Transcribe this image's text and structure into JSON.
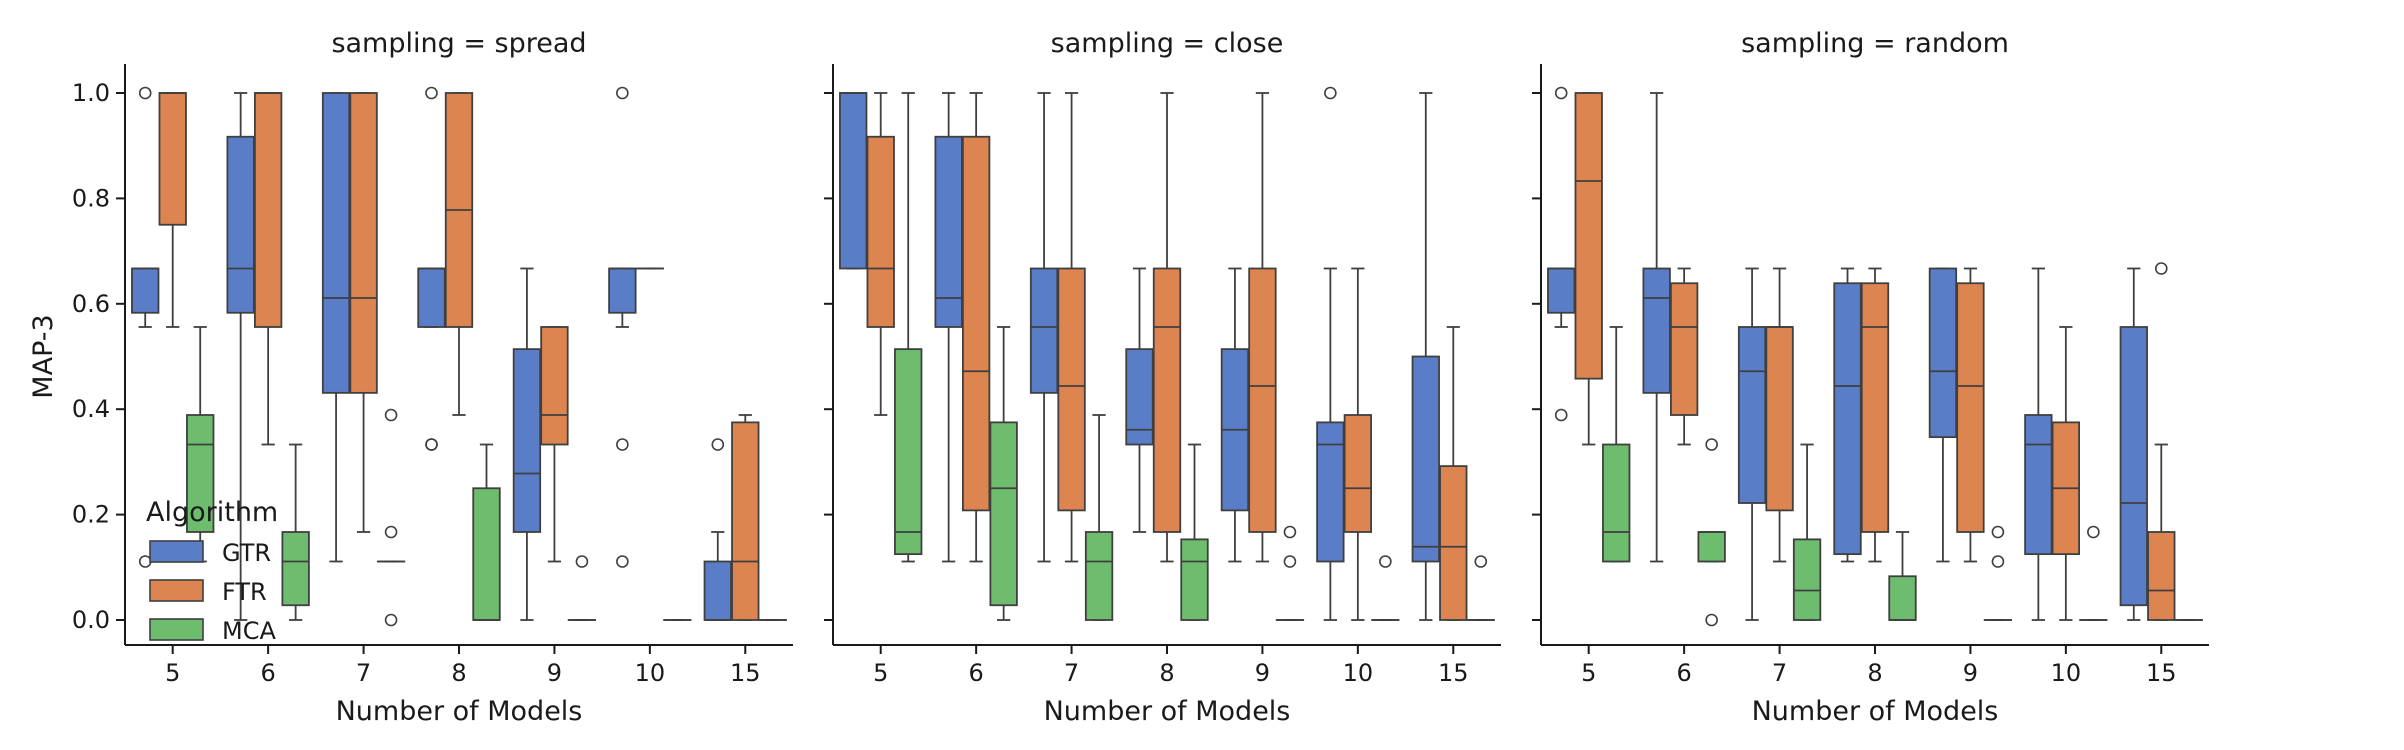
{
  "chart_data": {
    "type": "boxplot",
    "ylabel": "MAP-3",
    "xlabel": "Number of Models",
    "ylim": [
      -0.05,
      1.05
    ],
    "yticks": [
      0.0,
      0.2,
      0.4,
      0.6,
      0.8,
      1.0
    ],
    "categories": [
      "5",
      "6",
      "7",
      "8",
      "9",
      "10",
      "15"
    ],
    "legend": {
      "title": "Algorithm",
      "placement": "lower-left of first panel",
      "entries": [
        {
          "name": "GTR",
          "color": "#5a7dc8"
        },
        {
          "name": "FTR",
          "color": "#dd8550"
        },
        {
          "name": "MCA",
          "color": "#6ebd6e"
        }
      ]
    },
    "panels": [
      {
        "title": "sampling = spread",
        "groups": [
          {
            "category": "5",
            "boxes": [
              {
                "algo": "GTR",
                "q1": 0.583,
                "med": 0.667,
                "q3": 0.667,
                "lo": 0.556,
                "hi": 0.667,
                "out": [
                  1.0,
                  0.111
                ]
              },
              {
                "algo": "FTR",
                "q1": 0.75,
                "med": 1.0,
                "q3": 1.0,
                "lo": 0.556,
                "hi": 1.0,
                "out": []
              },
              {
                "algo": "MCA",
                "q1": 0.167,
                "med": 0.333,
                "q3": 0.389,
                "lo": 0.111,
                "hi": 0.556,
                "out": []
              }
            ]
          },
          {
            "category": "6",
            "boxes": [
              {
                "algo": "GTR",
                "q1": 0.583,
                "med": 0.667,
                "q3": 0.917,
                "lo": 0.0,
                "hi": 1.0,
                "out": []
              },
              {
                "algo": "FTR",
                "q1": 0.556,
                "med": 1.0,
                "q3": 1.0,
                "lo": 0.333,
                "hi": 1.0,
                "out": []
              },
              {
                "algo": "MCA",
                "q1": 0.028,
                "med": 0.111,
                "q3": 0.167,
                "lo": 0.0,
                "hi": 0.333,
                "out": []
              }
            ]
          },
          {
            "category": "7",
            "boxes": [
              {
                "algo": "GTR",
                "q1": 0.431,
                "med": 0.611,
                "q3": 1.0,
                "lo": 0.111,
                "hi": 1.0,
                "out": []
              },
              {
                "algo": "FTR",
                "q1": 0.431,
                "med": 0.611,
                "q3": 1.0,
                "lo": 0.167,
                "hi": 1.0,
                "out": []
              },
              {
                "algo": "MCA",
                "q1": 0.111,
                "med": 0.111,
                "q3": 0.111,
                "lo": 0.111,
                "hi": 0.111,
                "out": [
                  0.389,
                  0.167,
                  0.0
                ]
              }
            ]
          },
          {
            "category": "8",
            "boxes": [
              {
                "algo": "GTR",
                "q1": 0.556,
                "med": 0.667,
                "q3": 0.667,
                "lo": 0.556,
                "hi": 0.667,
                "out": [
                  1.0,
                  0.333,
                  0.333
                ]
              },
              {
                "algo": "FTR",
                "q1": 0.556,
                "med": 0.778,
                "q3": 1.0,
                "lo": 0.389,
                "hi": 1.0,
                "out": []
              },
              {
                "algo": "MCA",
                "q1": 0.0,
                "med": 0.0,
                "q3": 0.25,
                "lo": 0.0,
                "hi": 0.333,
                "out": []
              }
            ]
          },
          {
            "category": "9",
            "boxes": [
              {
                "algo": "GTR",
                "q1": 0.167,
                "med": 0.278,
                "q3": 0.514,
                "lo": 0.0,
                "hi": 0.667,
                "out": []
              },
              {
                "algo": "FTR",
                "q1": 0.333,
                "med": 0.389,
                "q3": 0.556,
                "lo": 0.111,
                "hi": 0.556,
                "out": []
              },
              {
                "algo": "MCA",
                "q1": 0.0,
                "med": 0.0,
                "q3": 0.0,
                "lo": 0.0,
                "hi": 0.0,
                "out": [
                  0.111
                ]
              }
            ]
          },
          {
            "category": "10",
            "boxes": [
              {
                "algo": "GTR",
                "q1": 0.583,
                "med": 0.667,
                "q3": 0.667,
                "lo": 0.556,
                "hi": 0.667,
                "out": [
                  1.0,
                  0.333,
                  0.111
                ]
              },
              {
                "algo": "FTR",
                "q1": 0.667,
                "med": 0.667,
                "q3": 0.667,
                "lo": 0.667,
                "hi": 0.667,
                "out": []
              },
              {
                "algo": "MCA",
                "q1": 0.0,
                "med": 0.0,
                "q3": 0.0,
                "lo": 0.0,
                "hi": 0.0,
                "out": []
              }
            ]
          },
          {
            "category": "15",
            "boxes": [
              {
                "algo": "GTR",
                "q1": 0.0,
                "med": 0.0,
                "q3": 0.111,
                "lo": 0.0,
                "hi": 0.167,
                "out": [
                  0.333
                ]
              },
              {
                "algo": "FTR",
                "q1": 0.0,
                "med": 0.111,
                "q3": 0.375,
                "lo": 0.0,
                "hi": 0.389,
                "out": []
              },
              {
                "algo": "MCA",
                "q1": 0.0,
                "med": 0.0,
                "q3": 0.0,
                "lo": 0.0,
                "hi": 0.0,
                "out": []
              }
            ]
          }
        ]
      },
      {
        "title": "sampling = close",
        "groups": [
          {
            "category": "5",
            "boxes": [
              {
                "algo": "GTR",
                "q1": 0.667,
                "med": 1.0,
                "q3": 1.0,
                "lo": 0.667,
                "hi": 1.0,
                "out": []
              },
              {
                "algo": "FTR",
                "q1": 0.556,
                "med": 0.667,
                "q3": 0.917,
                "lo": 0.389,
                "hi": 1.0,
                "out": []
              },
              {
                "algo": "MCA",
                "q1": 0.125,
                "med": 0.167,
                "q3": 0.514,
                "lo": 0.111,
                "hi": 1.0,
                "out": []
              }
            ]
          },
          {
            "category": "6",
            "boxes": [
              {
                "algo": "GTR",
                "q1": 0.556,
                "med": 0.611,
                "q3": 0.917,
                "lo": 0.111,
                "hi": 1.0,
                "out": []
              },
              {
                "algo": "FTR",
                "q1": 0.208,
                "med": 0.472,
                "q3": 0.917,
                "lo": 0.111,
                "hi": 1.0,
                "out": []
              },
              {
                "algo": "MCA",
                "q1": 0.028,
                "med": 0.25,
                "q3": 0.375,
                "lo": 0.0,
                "hi": 0.556,
                "out": []
              }
            ]
          },
          {
            "category": "7",
            "boxes": [
              {
                "algo": "GTR",
                "q1": 0.431,
                "med": 0.556,
                "q3": 0.667,
                "lo": 0.111,
                "hi": 1.0,
                "out": []
              },
              {
                "algo": "FTR",
                "q1": 0.208,
                "med": 0.444,
                "q3": 0.667,
                "lo": 0.111,
                "hi": 1.0,
                "out": []
              },
              {
                "algo": "MCA",
                "q1": 0.0,
                "med": 0.111,
                "q3": 0.167,
                "lo": 0.0,
                "hi": 0.389,
                "out": []
              }
            ]
          },
          {
            "category": "8",
            "boxes": [
              {
                "algo": "GTR",
                "q1": 0.333,
                "med": 0.361,
                "q3": 0.514,
                "lo": 0.167,
                "hi": 0.667,
                "out": []
              },
              {
                "algo": "FTR",
                "q1": 0.167,
                "med": 0.556,
                "q3": 0.667,
                "lo": 0.111,
                "hi": 1.0,
                "out": []
              },
              {
                "algo": "MCA",
                "q1": 0.0,
                "med": 0.111,
                "q3": 0.153,
                "lo": 0.0,
                "hi": 0.333,
                "out": []
              }
            ]
          },
          {
            "category": "9",
            "boxes": [
              {
                "algo": "GTR",
                "q1": 0.208,
                "med": 0.361,
                "q3": 0.514,
                "lo": 0.111,
                "hi": 0.667,
                "out": []
              },
              {
                "algo": "FTR",
                "q1": 0.167,
                "med": 0.444,
                "q3": 0.667,
                "lo": 0.111,
                "hi": 1.0,
                "out": []
              },
              {
                "algo": "MCA",
                "q1": 0.0,
                "med": 0.0,
                "q3": 0.0,
                "lo": 0.0,
                "hi": 0.0,
                "out": [
                  0.167,
                  0.111
                ]
              }
            ]
          },
          {
            "category": "10",
            "boxes": [
              {
                "algo": "GTR",
                "q1": 0.111,
                "med": 0.333,
                "q3": 0.375,
                "lo": 0.0,
                "hi": 0.667,
                "out": [
                  1.0
                ]
              },
              {
                "algo": "FTR",
                "q1": 0.167,
                "med": 0.25,
                "q3": 0.389,
                "lo": 0.0,
                "hi": 0.667,
                "out": []
              },
              {
                "algo": "MCA",
                "q1": 0.0,
                "med": 0.0,
                "q3": 0.0,
                "lo": 0.0,
                "hi": 0.0,
                "out": [
                  0.111
                ]
              }
            ]
          },
          {
            "category": "15",
            "boxes": [
              {
                "algo": "GTR",
                "q1": 0.111,
                "med": 0.139,
                "q3": 0.5,
                "lo": 0.0,
                "hi": 1.0,
                "out": []
              },
              {
                "algo": "FTR",
                "q1": 0.0,
                "med": 0.139,
                "q3": 0.292,
                "lo": 0.0,
                "hi": 0.556,
                "out": []
              },
              {
                "algo": "MCA",
                "q1": 0.0,
                "med": 0.0,
                "q3": 0.0,
                "lo": 0.0,
                "hi": 0.0,
                "out": [
                  0.111
                ]
              }
            ]
          }
        ]
      },
      {
        "title": "sampling = random",
        "groups": [
          {
            "category": "5",
            "boxes": [
              {
                "algo": "GTR",
                "q1": 0.583,
                "med": 0.667,
                "q3": 0.667,
                "lo": 0.556,
                "hi": 0.667,
                "out": [
                  1.0,
                  0.389
                ]
              },
              {
                "algo": "FTR",
                "q1": 0.458,
                "med": 0.833,
                "q3": 1.0,
                "lo": 0.333,
                "hi": 1.0,
                "out": []
              },
              {
                "algo": "MCA",
                "q1": 0.111,
                "med": 0.167,
                "q3": 0.333,
                "lo": 0.111,
                "hi": 0.556,
                "out": []
              }
            ]
          },
          {
            "category": "6",
            "boxes": [
              {
                "algo": "GTR",
                "q1": 0.431,
                "med": 0.611,
                "q3": 0.667,
                "lo": 0.111,
                "hi": 1.0,
                "out": []
              },
              {
                "algo": "FTR",
                "q1": 0.389,
                "med": 0.556,
                "q3": 0.639,
                "lo": 0.333,
                "hi": 0.667,
                "out": []
              },
              {
                "algo": "MCA",
                "q1": 0.111,
                "med": 0.167,
                "q3": 0.167,
                "lo": 0.111,
                "hi": 0.167,
                "out": [
                  0.333,
                  0.0
                ]
              }
            ]
          },
          {
            "category": "7",
            "boxes": [
              {
                "algo": "GTR",
                "q1": 0.222,
                "med": 0.472,
                "q3": 0.556,
                "lo": 0.0,
                "hi": 0.667,
                "out": []
              },
              {
                "algo": "FTR",
                "q1": 0.208,
                "med": 0.556,
                "q3": 0.556,
                "lo": 0.111,
                "hi": 0.667,
                "out": []
              },
              {
                "algo": "MCA",
                "q1": 0.0,
                "med": 0.056,
                "q3": 0.153,
                "lo": 0.0,
                "hi": 0.333,
                "out": []
              }
            ]
          },
          {
            "category": "8",
            "boxes": [
              {
                "algo": "GTR",
                "q1": 0.125,
                "med": 0.444,
                "q3": 0.639,
                "lo": 0.111,
                "hi": 0.667,
                "out": []
              },
              {
                "algo": "FTR",
                "q1": 0.167,
                "med": 0.556,
                "q3": 0.639,
                "lo": 0.111,
                "hi": 0.667,
                "out": []
              },
              {
                "algo": "MCA",
                "q1": 0.0,
                "med": 0.0,
                "q3": 0.083,
                "lo": 0.0,
                "hi": 0.167,
                "out": []
              }
            ]
          },
          {
            "category": "9",
            "boxes": [
              {
                "algo": "GTR",
                "q1": 0.347,
                "med": 0.472,
                "q3": 0.667,
                "lo": 0.111,
                "hi": 0.667,
                "out": []
              },
              {
                "algo": "FTR",
                "q1": 0.167,
                "med": 0.444,
                "q3": 0.639,
                "lo": 0.111,
                "hi": 0.667,
                "out": []
              },
              {
                "algo": "MCA",
                "q1": 0.0,
                "med": 0.0,
                "q3": 0.0,
                "lo": 0.0,
                "hi": 0.0,
                "out": [
                  0.167,
                  0.111
                ]
              }
            ]
          },
          {
            "category": "10",
            "boxes": [
              {
                "algo": "GTR",
                "q1": 0.125,
                "med": 0.333,
                "q3": 0.389,
                "lo": 0.0,
                "hi": 0.667,
                "out": []
              },
              {
                "algo": "FTR",
                "q1": 0.125,
                "med": 0.25,
                "q3": 0.375,
                "lo": 0.0,
                "hi": 0.556,
                "out": []
              },
              {
                "algo": "MCA",
                "q1": 0.0,
                "med": 0.0,
                "q3": 0.0,
                "lo": 0.0,
                "hi": 0.0,
                "out": [
                  0.167
                ]
              }
            ]
          },
          {
            "category": "15",
            "boxes": [
              {
                "algo": "GTR",
                "q1": 0.028,
                "med": 0.222,
                "q3": 0.556,
                "lo": 0.0,
                "hi": 0.667,
                "out": []
              },
              {
                "algo": "FTR",
                "q1": 0.0,
                "med": 0.056,
                "q3": 0.167,
                "lo": 0.0,
                "hi": 0.333,
                "out": [
                  0.667
                ]
              },
              {
                "algo": "MCA",
                "q1": 0.0,
                "med": 0.0,
                "q3": 0.0,
                "lo": 0.0,
                "hi": 0.0,
                "out": []
              }
            ]
          }
        ]
      }
    ]
  }
}
